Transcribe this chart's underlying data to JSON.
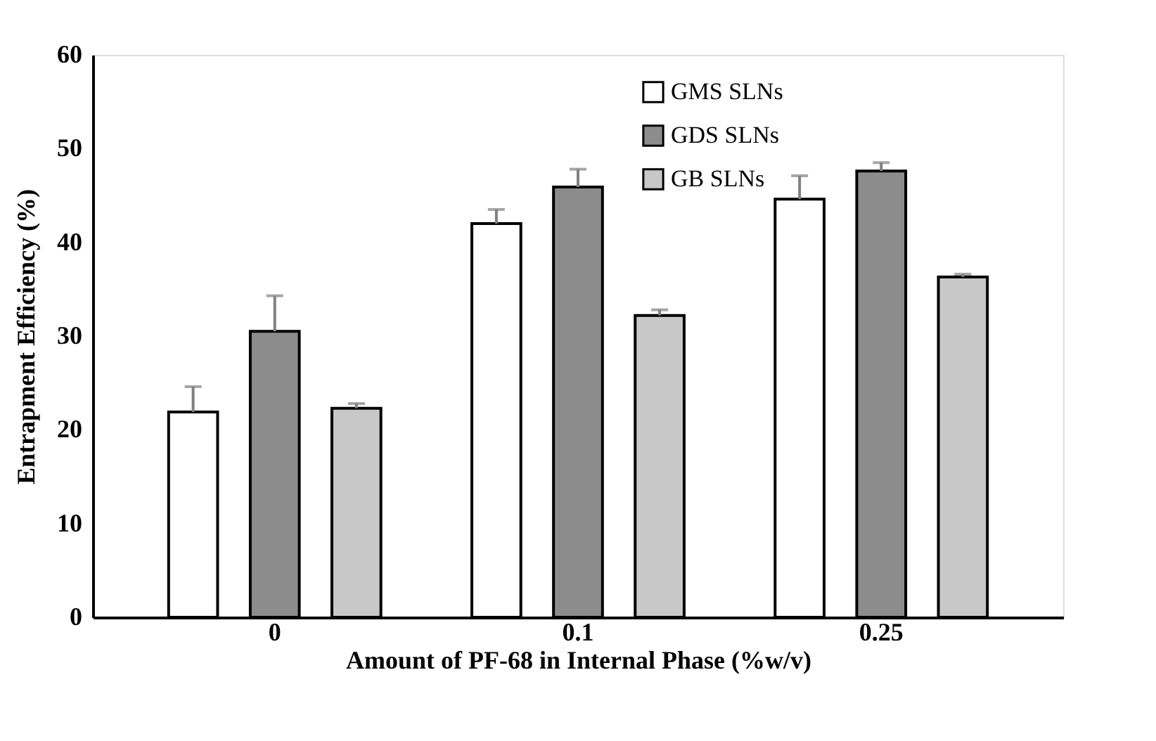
{
  "chart_data": {
    "type": "bar",
    "xlabel": "Amount of PF-68 in Internal Phase (%w/v)",
    "ylabel": "Entrapment Efficiency (%)",
    "categories": [
      "0",
      "0.1",
      "0.25"
    ],
    "series": [
      {
        "name": "GMS SLNs",
        "color": "#ffffff",
        "values": [
          21.9,
          42.0,
          44.6
        ],
        "errors": [
          [
            21.9,
            24.6
          ],
          [
            42.0,
            43.5
          ],
          [
            44.6,
            47.1
          ]
        ]
      },
      {
        "name": "GDS SLNs",
        "color": "#8c8c8c",
        "values": [
          30.5,
          45.9,
          47.6
        ],
        "errors": [
          [
            30.5,
            34.3
          ],
          [
            45.9,
            47.8
          ],
          [
            47.6,
            48.5
          ]
        ]
      },
      {
        "name": "GB SLNs",
        "color": "#c8c8c8",
        "values": [
          22.3,
          32.2,
          36.3
        ],
        "errors": [
          [
            22.3,
            22.8
          ],
          [
            32.2,
            32.8
          ],
          [
            36.3,
            36.6
          ]
        ]
      }
    ],
    "ylim": [
      0,
      60
    ],
    "yticks": [
      0,
      10,
      20,
      30,
      40,
      50,
      60
    ],
    "grid": false,
    "legend": "top right"
  }
}
